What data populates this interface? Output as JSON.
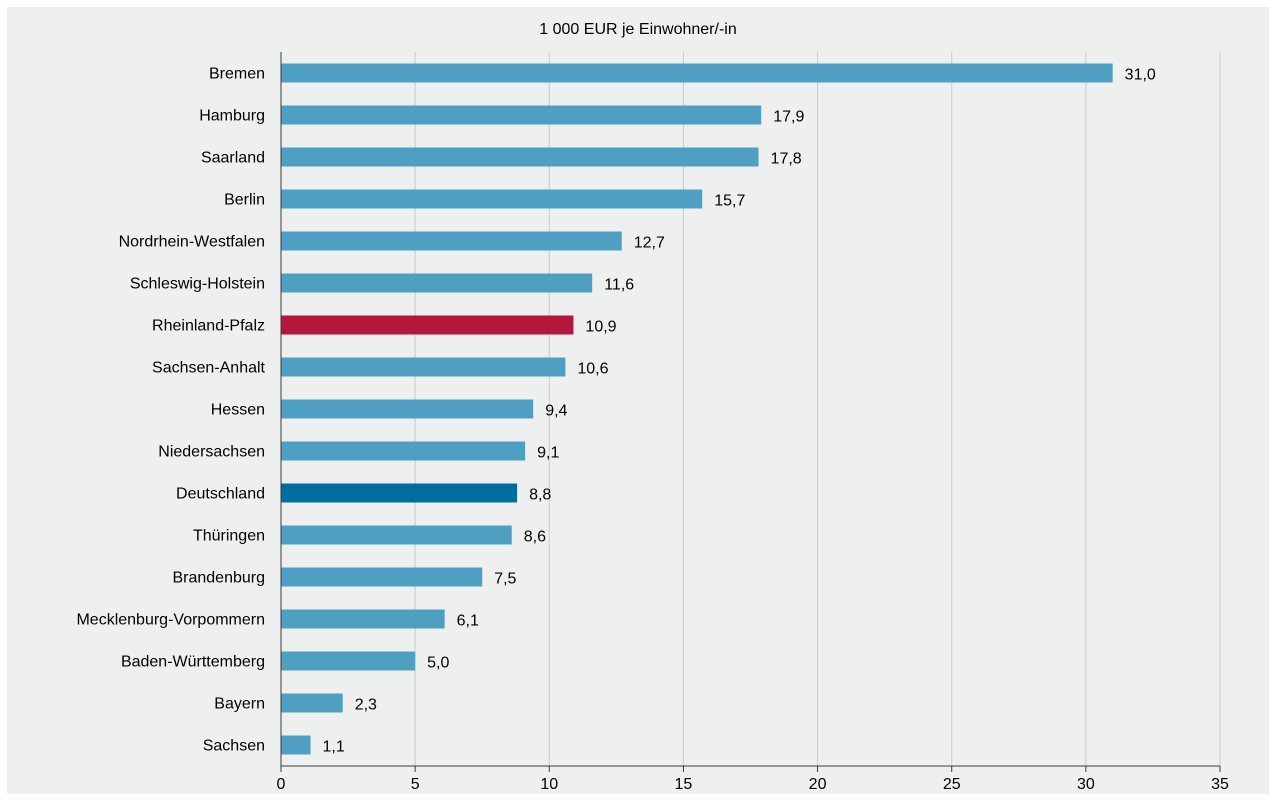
{
  "chart_data": {
    "type": "bar",
    "orientation": "horizontal",
    "title": "1 000 EUR je Einwohner/-in",
    "xlim": [
      0,
      35
    ],
    "xticks": [
      0,
      5,
      10,
      15,
      20,
      25,
      30,
      35
    ],
    "grid": true,
    "categories": [
      "Bremen",
      "Hamburg",
      "Saarland",
      "Berlin",
      "Nordrhein-Westfalen",
      "Schleswig-Holstein",
      "Rheinland-Pfalz",
      "Sachsen-Anhalt",
      "Hessen",
      "Niedersachsen",
      "Deutschland",
      "Thüringen",
      "Brandenburg",
      "Mecklenburg-Vorpommern",
      "Baden-Württemberg",
      "Bayern",
      "Sachsen"
    ],
    "values": [
      31.0,
      17.9,
      17.8,
      15.7,
      12.7,
      11.6,
      10.9,
      10.6,
      9.4,
      9.1,
      8.8,
      8.6,
      7.5,
      6.1,
      5.0,
      2.3,
      1.1
    ],
    "value_labels": [
      "31,0",
      "17,9",
      "17,8",
      "15,7",
      "12,7",
      "11,6",
      "10,9",
      "10,6",
      "9,4",
      "9,1",
      "8,8",
      "8,6",
      "7,5",
      "6,1",
      "5,0",
      "2,3",
      "1,1"
    ],
    "bar_colors": {
      "default": "#4e9fc1",
      "Rheinland-Pfalz": "#b4163e",
      "Deutschland": "#006e9e"
    }
  }
}
